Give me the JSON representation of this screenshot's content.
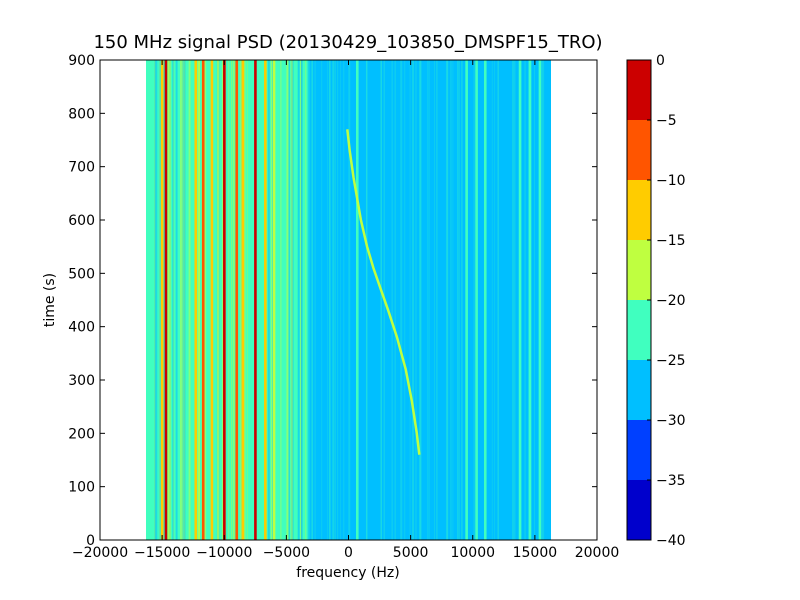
{
  "chart_data": {
    "type": "heatmap",
    "title": "150 MHz signal PSD (20130429_103850_DMSPF15_TRO)",
    "xlabel": "frequency (Hz)",
    "ylabel": "time (s)",
    "xlim": [
      -20000,
      20000
    ],
    "ylim": [
      0,
      900
    ],
    "data_extent_x": [
      -16300,
      16300
    ],
    "xticks": [
      -20000,
      -15000,
      -10000,
      -5000,
      0,
      5000,
      10000,
      15000,
      20000
    ],
    "xtick_labels": [
      "−20000",
      "−15000",
      "−10000",
      "−5000",
      "0",
      "5000",
      "10000",
      "15000",
      "20000"
    ],
    "yticks": [
      0,
      100,
      200,
      300,
      400,
      500,
      600,
      700,
      800,
      900
    ],
    "ytick_labels": [
      "0",
      "100",
      "200",
      "300",
      "400",
      "500",
      "600",
      "700",
      "800",
      "900"
    ],
    "colorbar": {
      "levels": [
        -40,
        -35,
        -30,
        -25,
        -20,
        -15,
        -10,
        -5,
        0
      ],
      "tick_labels": [
        "−40",
        "−35",
        "−30",
        "−25",
        "−20",
        "−15",
        "−10",
        "−5",
        "0"
      ],
      "colors": [
        "#0000cc",
        "#0040ff",
        "#00bfff",
        "#40ffbf",
        "#bfff40",
        "#ffcc00",
        "#ff5500",
        "#cc0000"
      ]
    },
    "background_level_colors": {
      "left_band": "#40ffbf",
      "right_band": "#00bfff"
    },
    "features": [
      {
        "type": "vline",
        "freq": -15000,
        "level_color": "#ffcc00"
      },
      {
        "type": "vline",
        "freq": -14700,
        "level_color": "#cc0000"
      },
      {
        "type": "vline",
        "freq": -12300,
        "level_color": "#ffcc00"
      },
      {
        "type": "vline",
        "freq": -11700,
        "level_color": "#ff5500"
      },
      {
        "type": "vline",
        "freq": -11000,
        "level_color": "#ffcc00"
      },
      {
        "type": "vline",
        "freq": -10000,
        "level_color": "#cc0000"
      },
      {
        "type": "vline",
        "freq": -9000,
        "level_color": "#ff5500"
      },
      {
        "type": "vline",
        "freq": -8500,
        "level_color": "#ffcc00"
      },
      {
        "type": "vline",
        "freq": -7500,
        "level_color": "#cc0000"
      },
      {
        "type": "vline",
        "freq": -6700,
        "level_color": "#ffcc00"
      },
      {
        "type": "vline",
        "freq": -6000,
        "level_color": "#bfff40"
      },
      {
        "type": "vline",
        "freq": -3600,
        "level_color": "#40ffbf"
      },
      {
        "type": "vline",
        "freq": 700,
        "level_color": "#40ffbf"
      },
      {
        "type": "vline",
        "freq": 9500,
        "level_color": "#40ffbf"
      },
      {
        "type": "vline",
        "freq": 10300,
        "level_color": "#40ffbf"
      },
      {
        "type": "vline",
        "freq": 11000,
        "level_color": "#40ffbf"
      },
      {
        "type": "vline",
        "freq": 13800,
        "level_color": "#40ffbf"
      },
      {
        "type": "vline",
        "freq": 14600,
        "level_color": "#40ffbf"
      },
      {
        "type": "vline",
        "freq": 15400,
        "level_color": "#40ffbf"
      },
      {
        "type": "trace",
        "name": "",
        "level_color": "#bfff40",
        "points": [
          [
            5700,
            160
          ],
          [
            5500,
            200
          ],
          [
            5100,
            260
          ],
          [
            4600,
            320
          ],
          [
            3900,
            380
          ],
          [
            3200,
            430
          ],
          [
            2600,
            470
          ],
          [
            2000,
            510
          ],
          [
            1500,
            550
          ],
          [
            1000,
            600
          ],
          [
            700,
            640
          ],
          [
            400,
            680
          ],
          [
            100,
            730
          ],
          [
            -100,
            770
          ]
        ]
      }
    ]
  }
}
